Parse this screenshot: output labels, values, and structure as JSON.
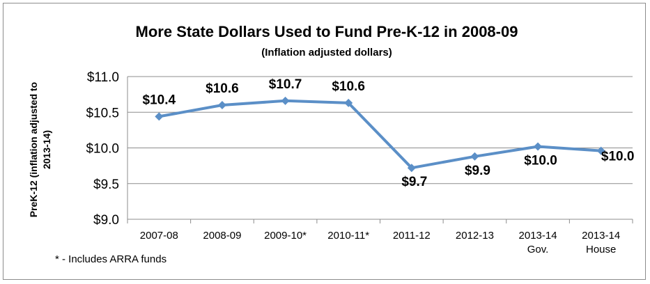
{
  "chart_data": {
    "type": "line",
    "title": "More State Dollars Used to Fund Pre-K-12 in 2008-09",
    "subtitle": "(Inflation adjusted dollars)",
    "ylabel": [
      "PreK-12 (inflation adjusted to",
      "2013-14)"
    ],
    "xlabel": "",
    "categories": [
      [
        "2007-08"
      ],
      [
        "2008-09"
      ],
      [
        "2009-10*"
      ],
      [
        "2010-11*"
      ],
      [
        "2011-12"
      ],
      [
        "2012-13"
      ],
      [
        "2013-14",
        "Gov."
      ],
      [
        "2013-14",
        "House"
      ]
    ],
    "series": [
      {
        "values": [
          10.44,
          10.6,
          10.66,
          10.63,
          9.72,
          9.88,
          10.02,
          9.96
        ],
        "data_labels": [
          "$10.4",
          "$10.6",
          "$10.7",
          "$10.6",
          "$9.7",
          "$9.9",
          "$10.0",
          "$10.0"
        ],
        "color": "#5b8fc7"
      }
    ],
    "ylim": [
      9.0,
      11.0
    ],
    "yticks": [
      {
        "value": 11.0,
        "label": "$11.0"
      },
      {
        "value": 10.5,
        "label": "$10.5"
      },
      {
        "value": 10.0,
        "label": "$10.0"
      },
      {
        "value": 9.5,
        "label": "$9.5"
      },
      {
        "value": 9.0,
        "label": "$9.0"
      }
    ],
    "grid": true,
    "legend": "none",
    "note": "* - Includes ARRA funds"
  }
}
